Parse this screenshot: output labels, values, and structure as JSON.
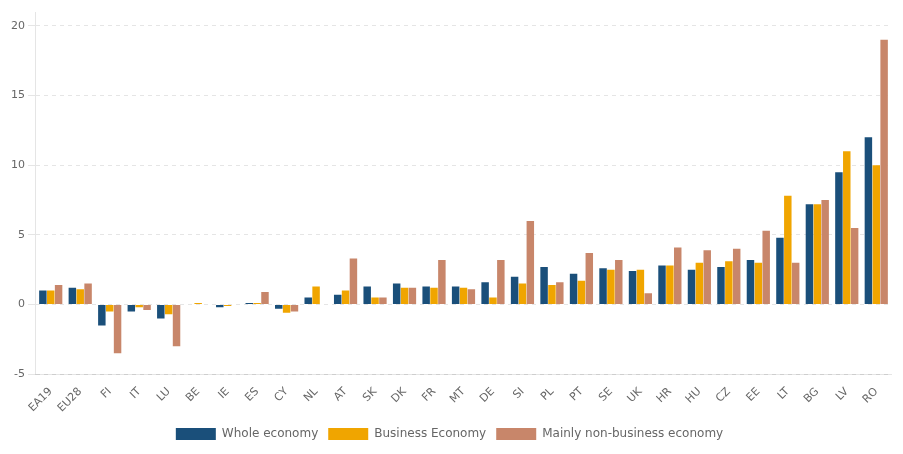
{
  "chart_data": {
    "type": "bar",
    "categories": [
      "EA19",
      "EU28",
      "FI",
      "IT",
      "LU",
      "BE",
      "IE",
      "ES",
      "CY",
      "NL",
      "AT",
      "SK",
      "DK",
      "FR",
      "MT",
      "DE",
      "SI",
      "PL",
      "PT",
      "SE",
      "UK",
      "HR",
      "HU",
      "CZ",
      "EE",
      "LT",
      "BG",
      "LV",
      "RO"
    ],
    "series": [
      {
        "name": "Whole economy",
        "color": "#1a4f7a",
        "values": [
          1.0,
          1.2,
          -1.5,
          -0.5,
          -1.0,
          0.0,
          -0.2,
          0.1,
          -0.3,
          0.5,
          0.7,
          1.3,
          1.5,
          1.3,
          1.3,
          1.6,
          2.0,
          2.7,
          2.2,
          2.6,
          2.4,
          2.8,
          2.5,
          2.7,
          3.2,
          4.8,
          7.2,
          9.5,
          12.0
        ]
      },
      {
        "name": "Business Economy",
        "color": "#f0a500",
        "values": [
          1.0,
          1.1,
          -0.5,
          -0.2,
          -0.7,
          0.1,
          -0.1,
          0.1,
          -0.6,
          1.3,
          1.0,
          0.5,
          1.2,
          1.2,
          1.2,
          0.5,
          1.5,
          1.4,
          1.7,
          2.5,
          2.5,
          2.8,
          3.0,
          3.1,
          3.0,
          7.8,
          7.2,
          11.0,
          10.0
        ]
      },
      {
        "name": "Mainly non-business economy",
        "color": "#c8866a",
        "values": [
          1.4,
          1.5,
          -3.5,
          -0.4,
          -3.0,
          0.0,
          0.0,
          0.9,
          -0.5,
          0.0,
          3.3,
          0.5,
          1.2,
          3.2,
          1.1,
          3.2,
          6.0,
          1.6,
          3.7,
          3.2,
          0.8,
          4.1,
          3.9,
          4.0,
          5.3,
          3.0,
          7.5,
          5.5,
          19.0
        ]
      }
    ],
    "ylim": [
      -5,
      21
    ],
    "yticks": [
      -5,
      0,
      5,
      10,
      15,
      20
    ],
    "grid": true,
    "legend": "bottom"
  }
}
